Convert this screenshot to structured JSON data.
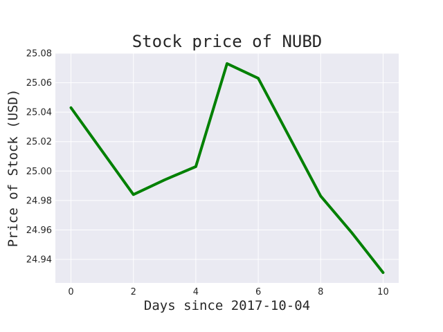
{
  "chart_data": {
    "type": "line",
    "title": "Stock price of NUBD",
    "xlabel": "Days since 2017-10-04",
    "ylabel": "Price of Stock (USD)",
    "x": [
      0,
      2,
      3,
      4,
      5,
      6,
      8,
      9,
      10
    ],
    "series": [
      {
        "values": [
          25.043,
          24.984,
          24.994,
          25.003,
          25.073,
          25.063,
          24.983,
          24.958,
          24.931
        ],
        "color": "#008000"
      }
    ],
    "xlim": [
      -0.5,
      10.5
    ],
    "ylim": [
      24.924,
      25.08
    ],
    "xticks": [
      0,
      2,
      4,
      6,
      8,
      10
    ],
    "yticks": [
      24.94,
      24.96,
      24.98,
      25.0,
      25.02,
      25.04,
      25.06,
      25.08
    ],
    "grid": true,
    "legend": "none",
    "background_color": "#eaeaf2",
    "grid_color": "#ffffff"
  }
}
